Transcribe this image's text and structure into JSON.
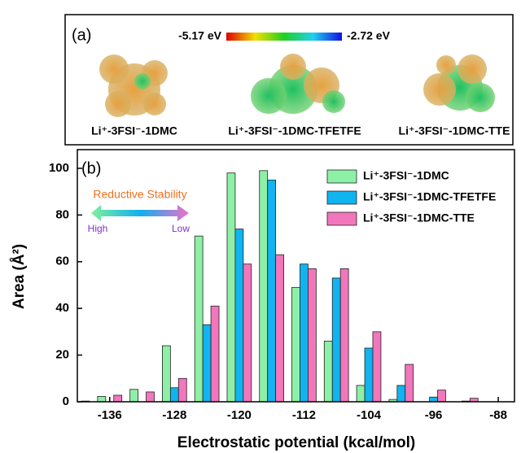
{
  "panel_a": {
    "label": "(a)",
    "colorbar_min": "-5.17 eV",
    "colorbar_max": "-2.72 eV",
    "molecules": [
      "Li⁺-3FSI⁻-1DMC",
      "Li⁺-3FSI⁻-1DMC-TFETFE",
      "Li⁺-3FSI⁻-1DMC-TTE"
    ]
  },
  "chart_data": {
    "type": "bar",
    "panel_label": "(b)",
    "x_label": "Electrostatic potential (kcal/mol)",
    "y_label": "Area (Å²)",
    "annotation": {
      "title": "Reductive Stability",
      "left": "High",
      "right": "Low"
    },
    "x": [
      -140,
      -136,
      -132,
      -128,
      -124,
      -120,
      -116,
      -112,
      -108,
      -104,
      -100,
      -96,
      -92
    ],
    "series": [
      {
        "name": "Li⁺-3FSI⁻-1DMC",
        "color": "#8ef0a6",
        "values": [
          0,
          2.3,
          5.3,
          24,
          71,
          98,
          99,
          49,
          26,
          7,
          1,
          0,
          0
        ]
      },
      {
        "name": "Li⁺-3FSI⁻-1DMC-TFETFE",
        "color": "#10b4f0",
        "values": [
          0,
          0,
          0,
          6,
          33,
          74,
          95,
          59,
          53,
          23,
          7,
          2,
          0.3
        ]
      },
      {
        "name": "Li⁺-3FSI⁻-1DMC-TTE",
        "color": "#f276bc",
        "values": [
          0.3,
          2.8,
          4.2,
          10,
          41,
          59,
          63,
          57,
          57,
          30,
          16,
          5,
          1.5
        ]
      }
    ],
    "xlim": [
      -140,
      -86
    ],
    "xticks": [
      -136,
      -128,
      -120,
      -112,
      -104,
      -96,
      -88
    ],
    "ylim": [
      0,
      108
    ],
    "yticks": [
      0,
      20,
      40,
      60,
      80,
      100
    ],
    "legend": "upper-right"
  }
}
